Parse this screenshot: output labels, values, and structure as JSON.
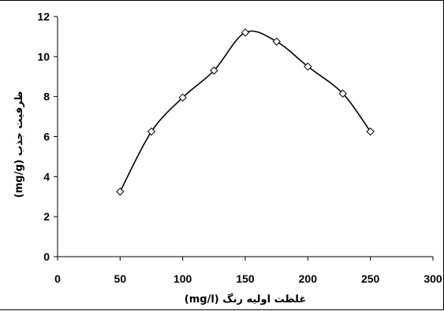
{
  "chart_data": {
    "type": "line",
    "title": "",
    "xlabel": "غلظت اولیه رنگ (mg/l)",
    "ylabel": "ظرفیت جذب (mg/g)",
    "xlim": [
      0,
      300
    ],
    "ylim": [
      0,
      12
    ],
    "x_ticks": [
      "0",
      "50",
      "100",
      "150",
      "200",
      "250",
      "300"
    ],
    "y_ticks": [
      "0",
      "2",
      "4",
      "6",
      "8",
      "10",
      "12"
    ],
    "grid": false,
    "legend": "none",
    "series": [
      {
        "marker": "diamond",
        "smooth": true,
        "color": "#000000",
        "marker_fill": "#ffffff",
        "x": [
          50,
          75,
          100,
          125,
          150,
          175,
          200,
          228,
          250
        ],
        "y": [
          3.25,
          6.25,
          7.95,
          9.3,
          11.2,
          10.75,
          9.5,
          8.15,
          6.25
        ]
      }
    ]
  }
}
